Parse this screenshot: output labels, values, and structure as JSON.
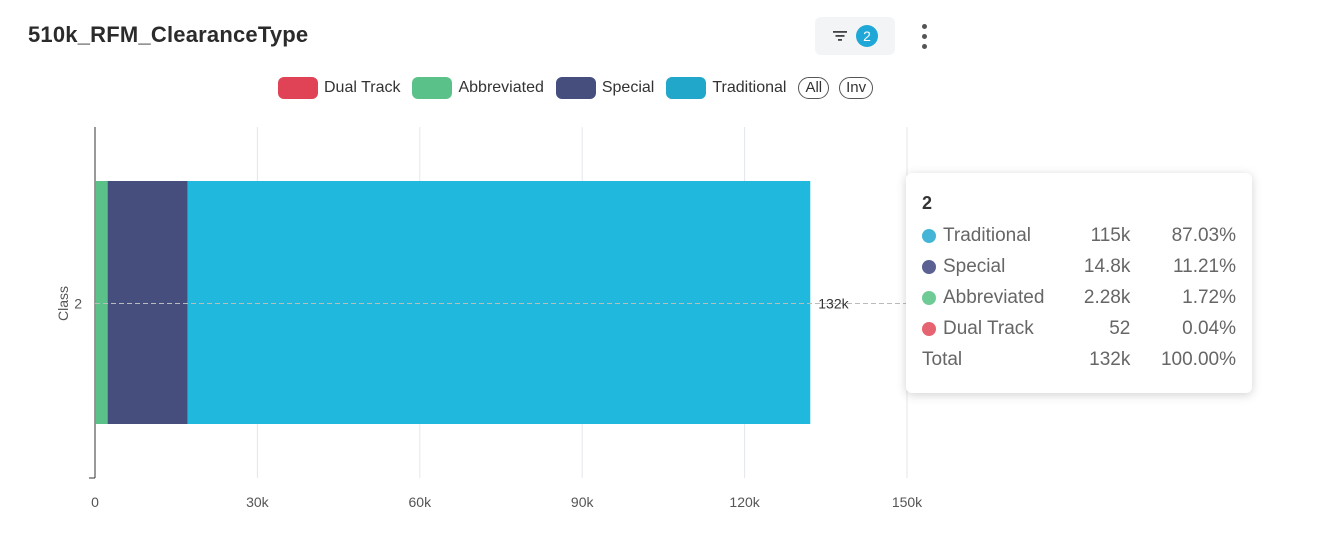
{
  "header": {
    "title": "510k_RFM_ClearanceType",
    "filter_count": "2"
  },
  "legend": {
    "items": [
      {
        "label": "Dual Track",
        "color": "#e04355"
      },
      {
        "label": "Abbreviated",
        "color": "#5ac189"
      },
      {
        "label": "Special",
        "color": "#454e7c"
      },
      {
        "label": "Traditional",
        "color": "#20a7c9"
      }
    ],
    "all_label": "All",
    "inv_label": "Inv"
  },
  "chart_data": {
    "type": "bar",
    "orientation": "horizontal",
    "stacked": true,
    "categories": [
      "2"
    ],
    "ylabel": "Class",
    "xlim": [
      0,
      150000
    ],
    "x_ticks": [
      "0",
      "30k",
      "60k",
      "90k",
      "120k",
      "150k"
    ],
    "series": [
      {
        "name": "Dual Track",
        "color": "#e04355",
        "values": [
          52
        ]
      },
      {
        "name": "Abbreviated",
        "color": "#5ac189",
        "values": [
          2280
        ]
      },
      {
        "name": "Special",
        "color": "#454e7c",
        "values": [
          14800
        ]
      },
      {
        "name": "Traditional",
        "color": "#20b8dc",
        "values": [
          115000
        ]
      }
    ],
    "total_label": "132k",
    "grid": true
  },
  "tooltip": {
    "title": "2",
    "rows": [
      {
        "name": "Traditional",
        "value": "115k",
        "pct": "87.03%",
        "color": "#45b5d7"
      },
      {
        "name": "Special",
        "value": "14.8k",
        "pct": "11.21%",
        "color": "#5b6190"
      },
      {
        "name": "Abbreviated",
        "value": "2.28k",
        "pct": "1.72%",
        "color": "#6fcb96"
      },
      {
        "name": "Dual Track",
        "value": "52",
        "pct": "0.04%",
        "color": "#e66472"
      }
    ],
    "total": {
      "name": "Total",
      "value": "132k",
      "pct": "100.00%"
    }
  }
}
